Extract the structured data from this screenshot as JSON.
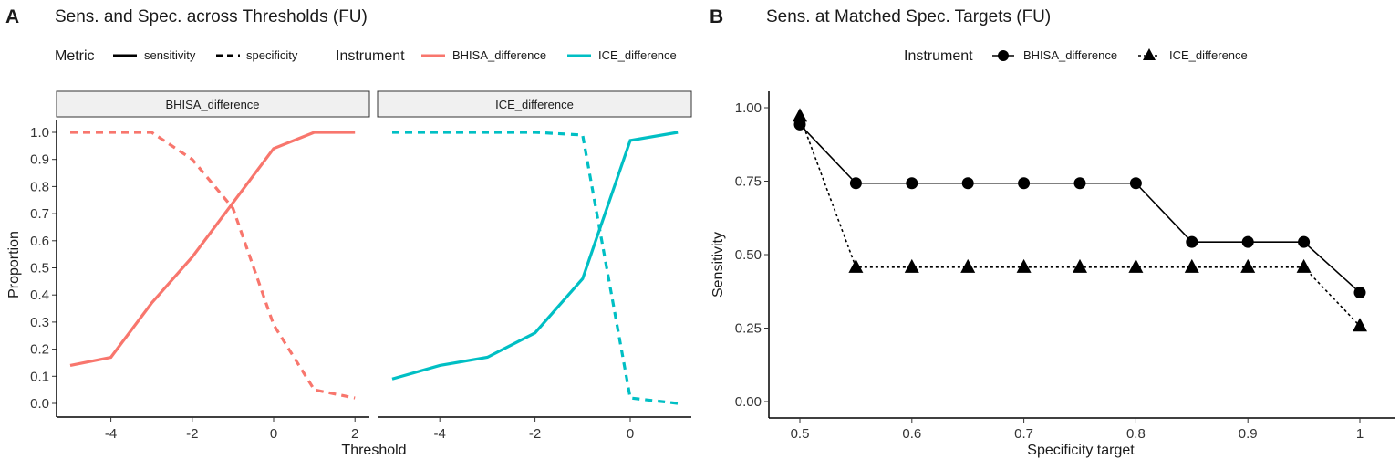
{
  "chart_data": [
    {
      "panel_label": "A",
      "type": "line",
      "title": "Sens. and Spec. across Thresholds (FU)",
      "xlabel": "Threshold",
      "ylabel": "Proportion",
      "ylim": [
        0,
        1
      ],
      "yticks": [
        "0.0",
        "0.1",
        "0.2",
        "0.3",
        "0.4",
        "0.5",
        "0.6",
        "0.7",
        "0.8",
        "0.9",
        "1.0"
      ],
      "legend": {
        "metric_title": "Metric",
        "metric_items": [
          "sensitivity",
          "specificity"
        ],
        "instrument_title": "Instrument",
        "instrument_items": [
          "BHISA_difference",
          "ICE_difference"
        ],
        "placement": "top"
      },
      "facets": [
        {
          "name": "BHISA_difference",
          "color": "#F8766D",
          "xlim": [
            -5.3,
            2.3
          ],
          "xticks": [
            "-4",
            "-2",
            "0",
            "2"
          ],
          "x": [
            -5,
            -4,
            -3,
            -2,
            -1,
            0,
            1,
            2
          ],
          "sensitivity": [
            0.14,
            0.17,
            0.37,
            0.54,
            0.74,
            0.94,
            1.0,
            1.0
          ],
          "specificity": [
            1.0,
            1.0,
            1.0,
            0.9,
            0.72,
            0.29,
            0.05,
            0.02
          ]
        },
        {
          "name": "ICE_difference",
          "color": "#00BFC4",
          "xlim": [
            -5.3,
            1.3
          ],
          "xticks": [
            "-4",
            "-2",
            "0"
          ],
          "x": [
            -5,
            -4,
            -3,
            -2,
            -1,
            0,
            1
          ],
          "sensitivity": [
            0.09,
            0.14,
            0.17,
            0.26,
            0.46,
            0.97,
            1.0
          ],
          "specificity": [
            1.0,
            1.0,
            1.0,
            1.0,
            0.99,
            0.02,
            0.0
          ]
        }
      ]
    },
    {
      "panel_label": "B",
      "type": "line",
      "title": "Sens. at Matched Spec. Targets (FU)",
      "xlabel": "Specificity target",
      "ylabel": "Sensitivity",
      "ylim": [
        0,
        1
      ],
      "xlim": [
        0.47,
        1.03
      ],
      "yticks": [
        "0.00",
        "0.25",
        "0.50",
        "0.75",
        "1.00"
      ],
      "xticks": [
        "0.5",
        "0.6",
        "0.7",
        "0.8",
        "0.9",
        "1"
      ],
      "legend": {
        "title": "Instrument",
        "placement": "top"
      },
      "x": [
        0.5,
        0.55,
        0.6,
        0.65,
        0.7,
        0.75,
        0.8,
        0.85,
        0.9,
        0.95,
        1.0
      ],
      "series": [
        {
          "name": "BHISA_difference",
          "marker": "circle",
          "linestyle": "solid",
          "values": [
            0.943,
            0.743,
            0.743,
            0.743,
            0.743,
            0.743,
            0.743,
            0.543,
            0.543,
            0.543,
            0.371
          ]
        },
        {
          "name": "ICE_difference",
          "marker": "triangle",
          "linestyle": "dashed",
          "values": [
            0.971,
            0.457,
            0.457,
            0.457,
            0.457,
            0.457,
            0.457,
            0.457,
            0.457,
            0.457,
            0.257
          ]
        }
      ]
    }
  ]
}
